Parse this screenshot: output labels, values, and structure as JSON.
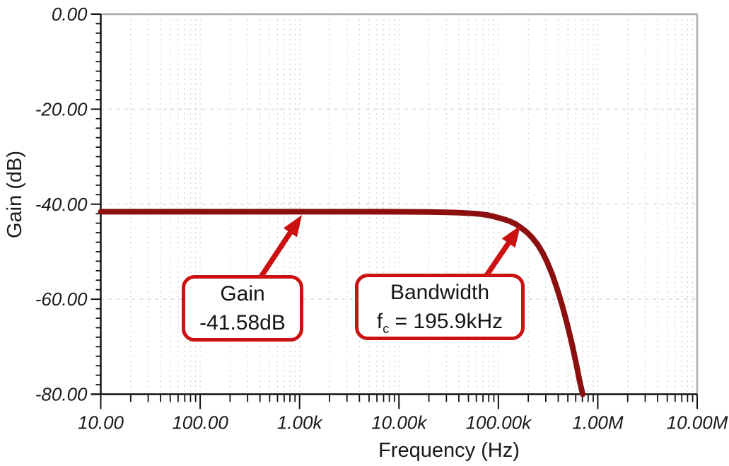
{
  "colors": {
    "curve": "#8B0F0F",
    "accent": "#CB1111",
    "grid": "#D4D4D4",
    "frame": "#ABABAB",
    "axis": "#111111",
    "text": "#1A1A1A",
    "background": "#FFFFFF"
  },
  "chart_data": {
    "type": "line",
    "title": "",
    "xlabel": "Frequency (Hz)",
    "ylabel": "Gain (dB)",
    "x_scale": "log",
    "xlim": [
      10,
      10000000
    ],
    "ylim": [
      -80,
      0
    ],
    "x_ticks": {
      "values": [
        10,
        100,
        1000,
        10000,
        100000,
        1000000,
        10000000
      ],
      "labels": [
        "10.00",
        "100.00",
        "1.00k",
        "10.00k",
        "100.00k",
        "1.00M",
        "10.00M"
      ]
    },
    "y_ticks": {
      "values": [
        0,
        -20,
        -40,
        -60,
        -80
      ],
      "labels": [
        "0.00",
        "-20.00",
        "-40.00",
        "-60.00",
        "-80.00"
      ]
    },
    "y_minor_step": 2,
    "grid": {
      "style": "dashed",
      "vertical": "all logarithmic ticks (majors and minors)",
      "horizontal": "major y ticks only",
      "top_right_frame": "solid gray"
    },
    "legend": false,
    "markers": {
      "flat_gain_db": -41.58,
      "cutoff_frequency_hz": 195900
    },
    "series": [
      {
        "name": "Gain (dB)",
        "color": "#8B0F0F",
        "stroke_width": 8,
        "points": [
          [
            10,
            -41.58
          ],
          [
            100,
            -41.58
          ],
          [
            1000,
            -41.58
          ],
          [
            5000,
            -41.58
          ],
          [
            10000,
            -41.6
          ],
          [
            20000,
            -41.65
          ],
          [
            30000,
            -41.7
          ],
          [
            40000,
            -41.8
          ],
          [
            50000,
            -41.9
          ],
          [
            60000,
            -42.0
          ],
          [
            70000,
            -42.15
          ],
          [
            80000,
            -42.35
          ],
          [
            90000,
            -42.6
          ],
          [
            100000,
            -42.85
          ],
          [
            115000,
            -43.2
          ],
          [
            130000,
            -43.6
          ],
          [
            150000,
            -44.2
          ],
          [
            170000,
            -45.0
          ],
          [
            195900,
            -46.0
          ],
          [
            220000,
            -47.1
          ],
          [
            250000,
            -48.6
          ],
          [
            280000,
            -50.3
          ],
          [
            310000,
            -52.2
          ],
          [
            350000,
            -54.9
          ],
          [
            390000,
            -57.8
          ],
          [
            440000,
            -61.4
          ],
          [
            490000,
            -65.1
          ],
          [
            550000,
            -69.4
          ],
          [
            610000,
            -73.8
          ],
          [
            660000,
            -77.4
          ],
          [
            705000,
            -80.0
          ]
        ]
      }
    ]
  },
  "callouts": {
    "gain": {
      "line1": "Gain",
      "line2": "-41.58dB"
    },
    "bandwidth": {
      "line1": "Bandwidth",
      "fc_symbol": "f",
      "fc_sub": "c",
      "fc_value": " = 195.9kHz"
    }
  }
}
